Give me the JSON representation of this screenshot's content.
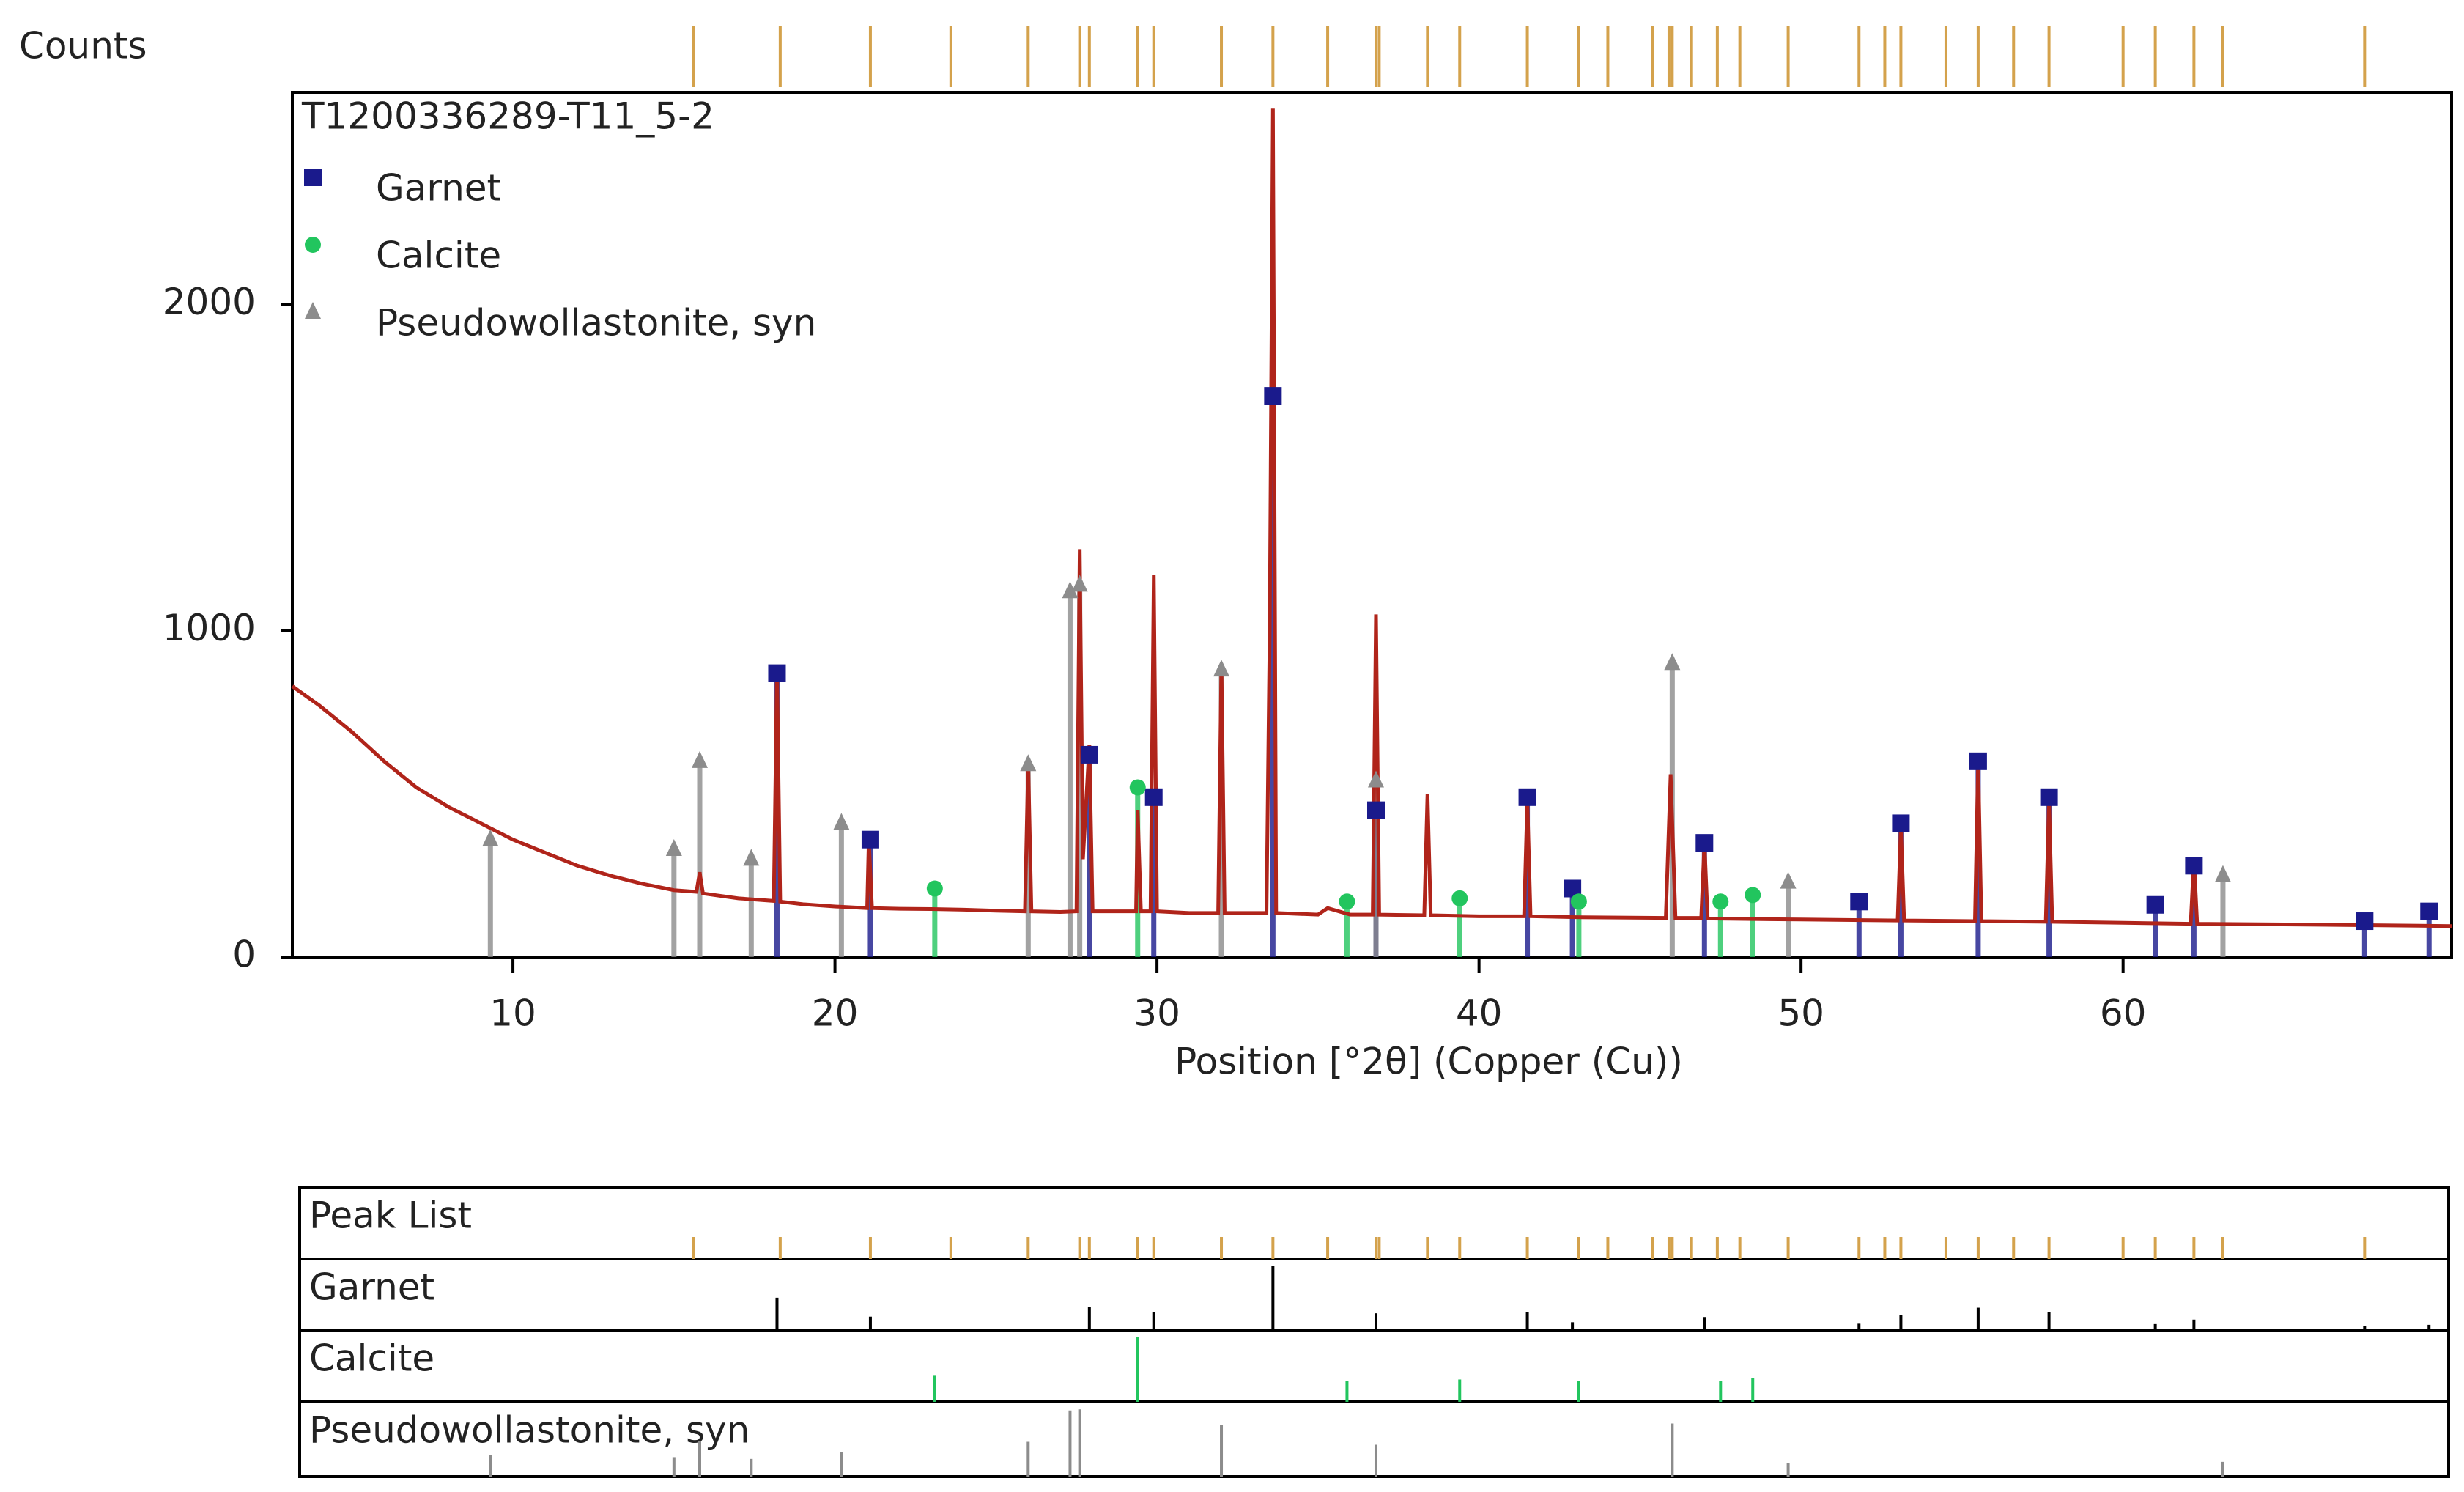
{
  "chart_data": {
    "type": "line",
    "title": "T1200336289-T11_5-2",
    "y_label": "Counts",
    "x_label": "Position [°2θ] (Copper (Cu))",
    "xlim": [
      3.15,
      70.2
    ],
    "ylim": [
      0,
      2650
    ],
    "xticks": [
      10,
      20,
      30,
      40,
      50,
      60
    ],
    "yticks": [
      0,
      1000,
      2000
    ],
    "x": [
      3.15,
      4,
      5,
      6,
      7,
      8,
      9,
      10,
      11,
      12,
      13,
      14,
      15,
      15.7,
      15.8,
      15.9,
      17,
      18.1,
      18.2,
      18.3,
      19,
      20,
      21,
      21.05,
      21.15,
      22,
      23,
      24,
      25,
      25.9,
      26.0,
      26.1,
      27,
      27.5,
      27.6,
      27.7,
      27.9,
      28.0,
      29,
      29.35,
      29.4,
      29.5,
      29.8,
      29.9,
      30.0,
      31,
      31.9,
      32.0,
      32.1,
      33.4,
      33.5,
      33.6,
      33.7,
      35,
      35.3,
      36,
      36.7,
      36.8,
      36.9,
      38.3,
      38.4,
      38.5,
      40,
      41.4,
      41.5,
      41.6,
      43,
      45.8,
      45.95,
      46.1,
      46.9,
      47.0,
      47.1,
      50,
      53.0,
      53.1,
      53.2,
      55.4,
      55.5,
      55.6,
      57.6,
      57.7,
      57.8,
      60,
      62.1,
      62.2,
      62.3,
      65,
      70.2
    ],
    "series": [
      {
        "color": "#b0241a",
        "values": [
          830,
          770,
          690,
          600,
          520,
          460,
          410,
          360,
          320,
          280,
          250,
          225,
          205,
          200,
          260,
          195,
          180,
          172,
          880,
          170,
          162,
          155,
          150,
          360,
          150,
          148,
          147,
          145,
          142,
          140,
          600,
          140,
          138,
          140,
          1250,
          300,
          650,
          140,
          140,
          140,
          450,
          140,
          140,
          1170,
          140,
          135,
          135,
          900,
          135,
          135,
          1000,
          2600,
          135,
          130,
          150,
          130,
          130,
          1050,
          130,
          128,
          500,
          128,
          125,
          125,
          480,
          125,
          122,
          120,
          560,
          120,
          120,
          350,
          118,
          115,
          112,
          400,
          112,
          110,
          600,
          110,
          108,
          480,
          108,
          105,
          102,
          300,
          102,
          100,
          95
        ]
      }
    ],
    "phases": [
      {
        "name": "Garnet",
        "color": "#1a1a8c",
        "marker": "square",
        "x": [
          18.2,
          21.1,
          27.9,
          29.9,
          33.6,
          36.8,
          41.5,
          42.9,
          47.0,
          51.8,
          53.1,
          55.5,
          57.7,
          61.0,
          62.2,
          67.5,
          69.5
        ],
        "values": [
          870,
          360,
          620,
          490,
          1720,
          450,
          490,
          210,
          350,
          170,
          410,
          600,
          490,
          160,
          280,
          110,
          140
        ]
      },
      {
        "name": "Calcite",
        "color": "#22c55e",
        "marker": "circle",
        "x": [
          23.1,
          29.4,
          35.9,
          39.4,
          43.1,
          47.5,
          48.5
        ],
        "values": [
          210,
          520,
          170,
          180,
          170,
          170,
          190
        ]
      },
      {
        "name": "Pseudowollastonite, syn",
        "color": "#8c8c8c",
        "marker": "triangle",
        "x": [
          9.3,
          15.0,
          15.8,
          17.4,
          20.2,
          26.0,
          27.3,
          27.6,
          32.0,
          36.8,
          46.0,
          49.6,
          63.1
        ],
        "values": [
          360,
          330,
          600,
          300,
          410,
          590,
          1120,
          1140,
          880,
          540,
          900,
          230,
          250
        ]
      }
    ],
    "peak_list": {
      "name": "Peak List",
      "color": "#d4a24c",
      "x": [
        15.6,
        18.3,
        21.1,
        23.6,
        26.0,
        27.6,
        27.9,
        29.4,
        29.9,
        32.0,
        33.6,
        35.3,
        36.8,
        36.9,
        38.4,
        39.4,
        41.5,
        43.1,
        44.0,
        45.4,
        45.9,
        46.0,
        46.6,
        47.4,
        48.1,
        49.6,
        51.8,
        52.6,
        53.1,
        54.5,
        55.5,
        56.6,
        57.7,
        60.0,
        61.0,
        62.2,
        63.1,
        67.5
      ]
    }
  }
}
